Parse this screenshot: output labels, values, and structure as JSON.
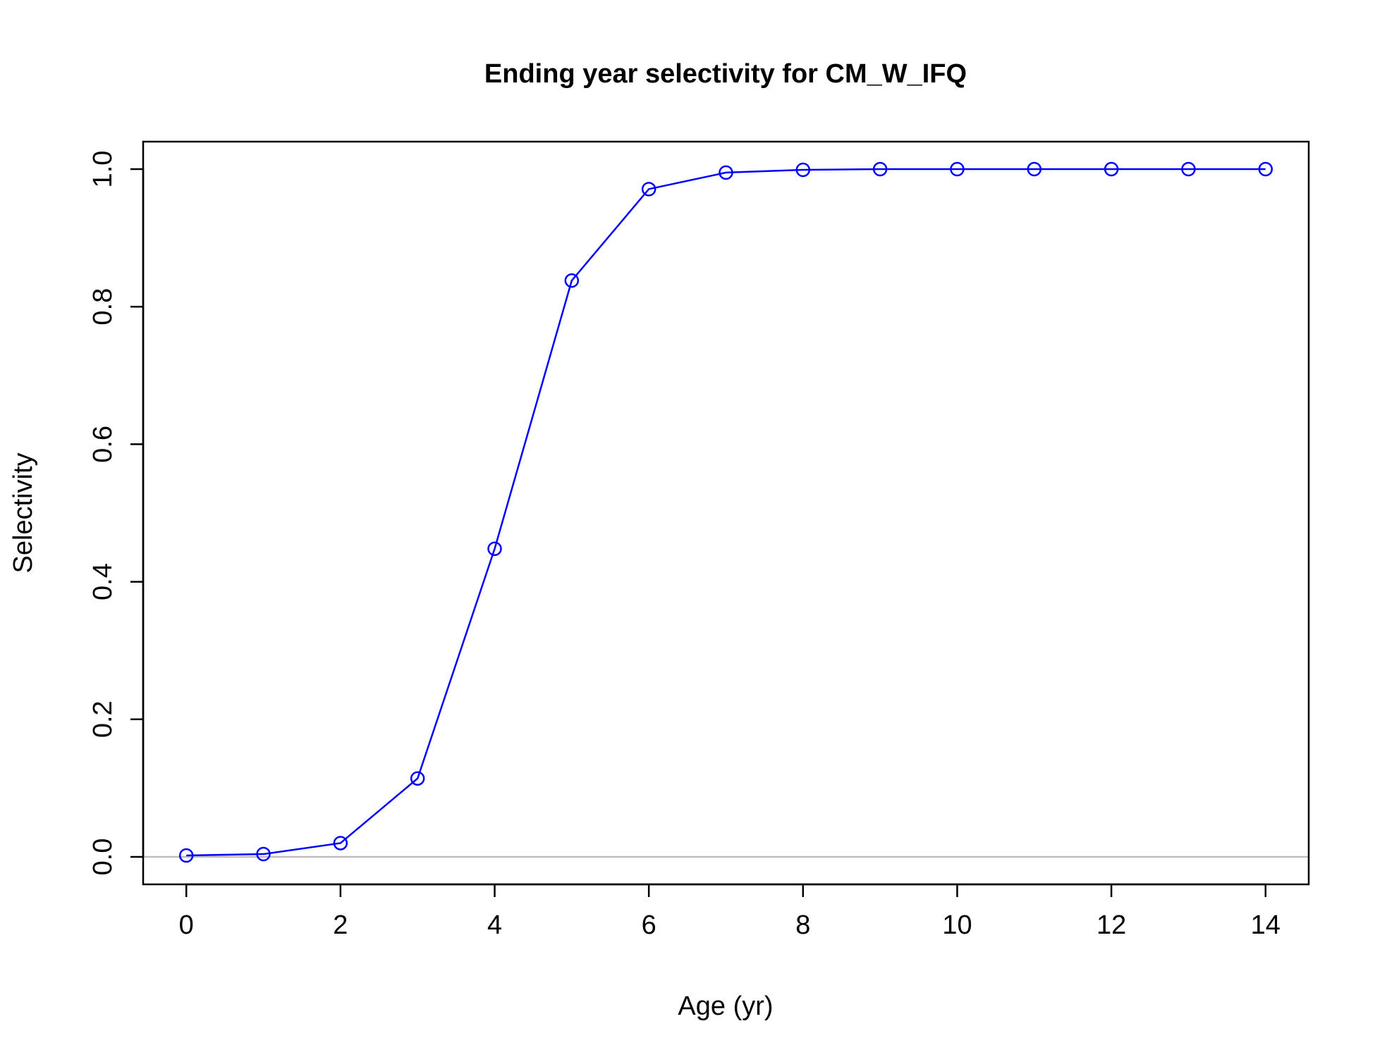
{
  "chart_data": {
    "type": "line",
    "title": "Ending year selectivity for CM_W_IFQ",
    "xlabel": "Age (yr)",
    "ylabel": "Selectivity",
    "x": [
      0,
      1,
      2,
      3,
      4,
      5,
      6,
      7,
      8,
      9,
      10,
      11,
      12,
      13,
      14
    ],
    "series": [
      {
        "values": [
          0.002,
          0.004,
          0.02,
          0.114,
          0.448,
          0.838,
          0.971,
          0.995,
          0.999,
          1.0,
          1.0,
          1.0,
          1.0,
          1.0,
          1.0
        ],
        "color": "#0000ff",
        "marker": "open-circle"
      }
    ],
    "xlim": [
      -0.56,
      14.56
    ],
    "ylim": [
      -0.04,
      1.04
    ],
    "xticks": [
      0,
      2,
      4,
      6,
      8,
      10,
      12,
      14
    ],
    "yticks": [
      0.0,
      0.2,
      0.4,
      0.6,
      0.8,
      1.0
    ],
    "ytick_labels": [
      "0.0",
      "0.2",
      "0.4",
      "0.6",
      "0.8",
      "1.0"
    ],
    "reference_line": {
      "y": 0,
      "color": "#bebebe"
    },
    "grid": false,
    "legend": "none"
  }
}
